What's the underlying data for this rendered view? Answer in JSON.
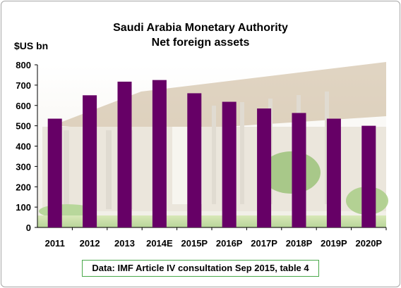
{
  "chart_data": {
    "type": "bar",
    "title": "Saudi Arabia Monetary Authority",
    "subtitle": "Net foreign assets",
    "ylabel": "$US bn",
    "xlabel": "",
    "categories": [
      "2011",
      "2012",
      "2013",
      "2014E",
      "2015P",
      "2016P",
      "2017P",
      "2018P",
      "2019P",
      "2020P"
    ],
    "values": [
      535,
      650,
      717,
      725,
      660,
      618,
      585,
      563,
      535,
      500
    ],
    "ylim": [
      0,
      800
    ],
    "yticks": [
      0,
      100,
      200,
      300,
      400,
      500,
      600,
      700,
      800
    ],
    "grid": false,
    "legend": "none",
    "bar_color": "#660066",
    "annotation": "Data: IMF Article IV consultation Sep 2015, table 4"
  }
}
